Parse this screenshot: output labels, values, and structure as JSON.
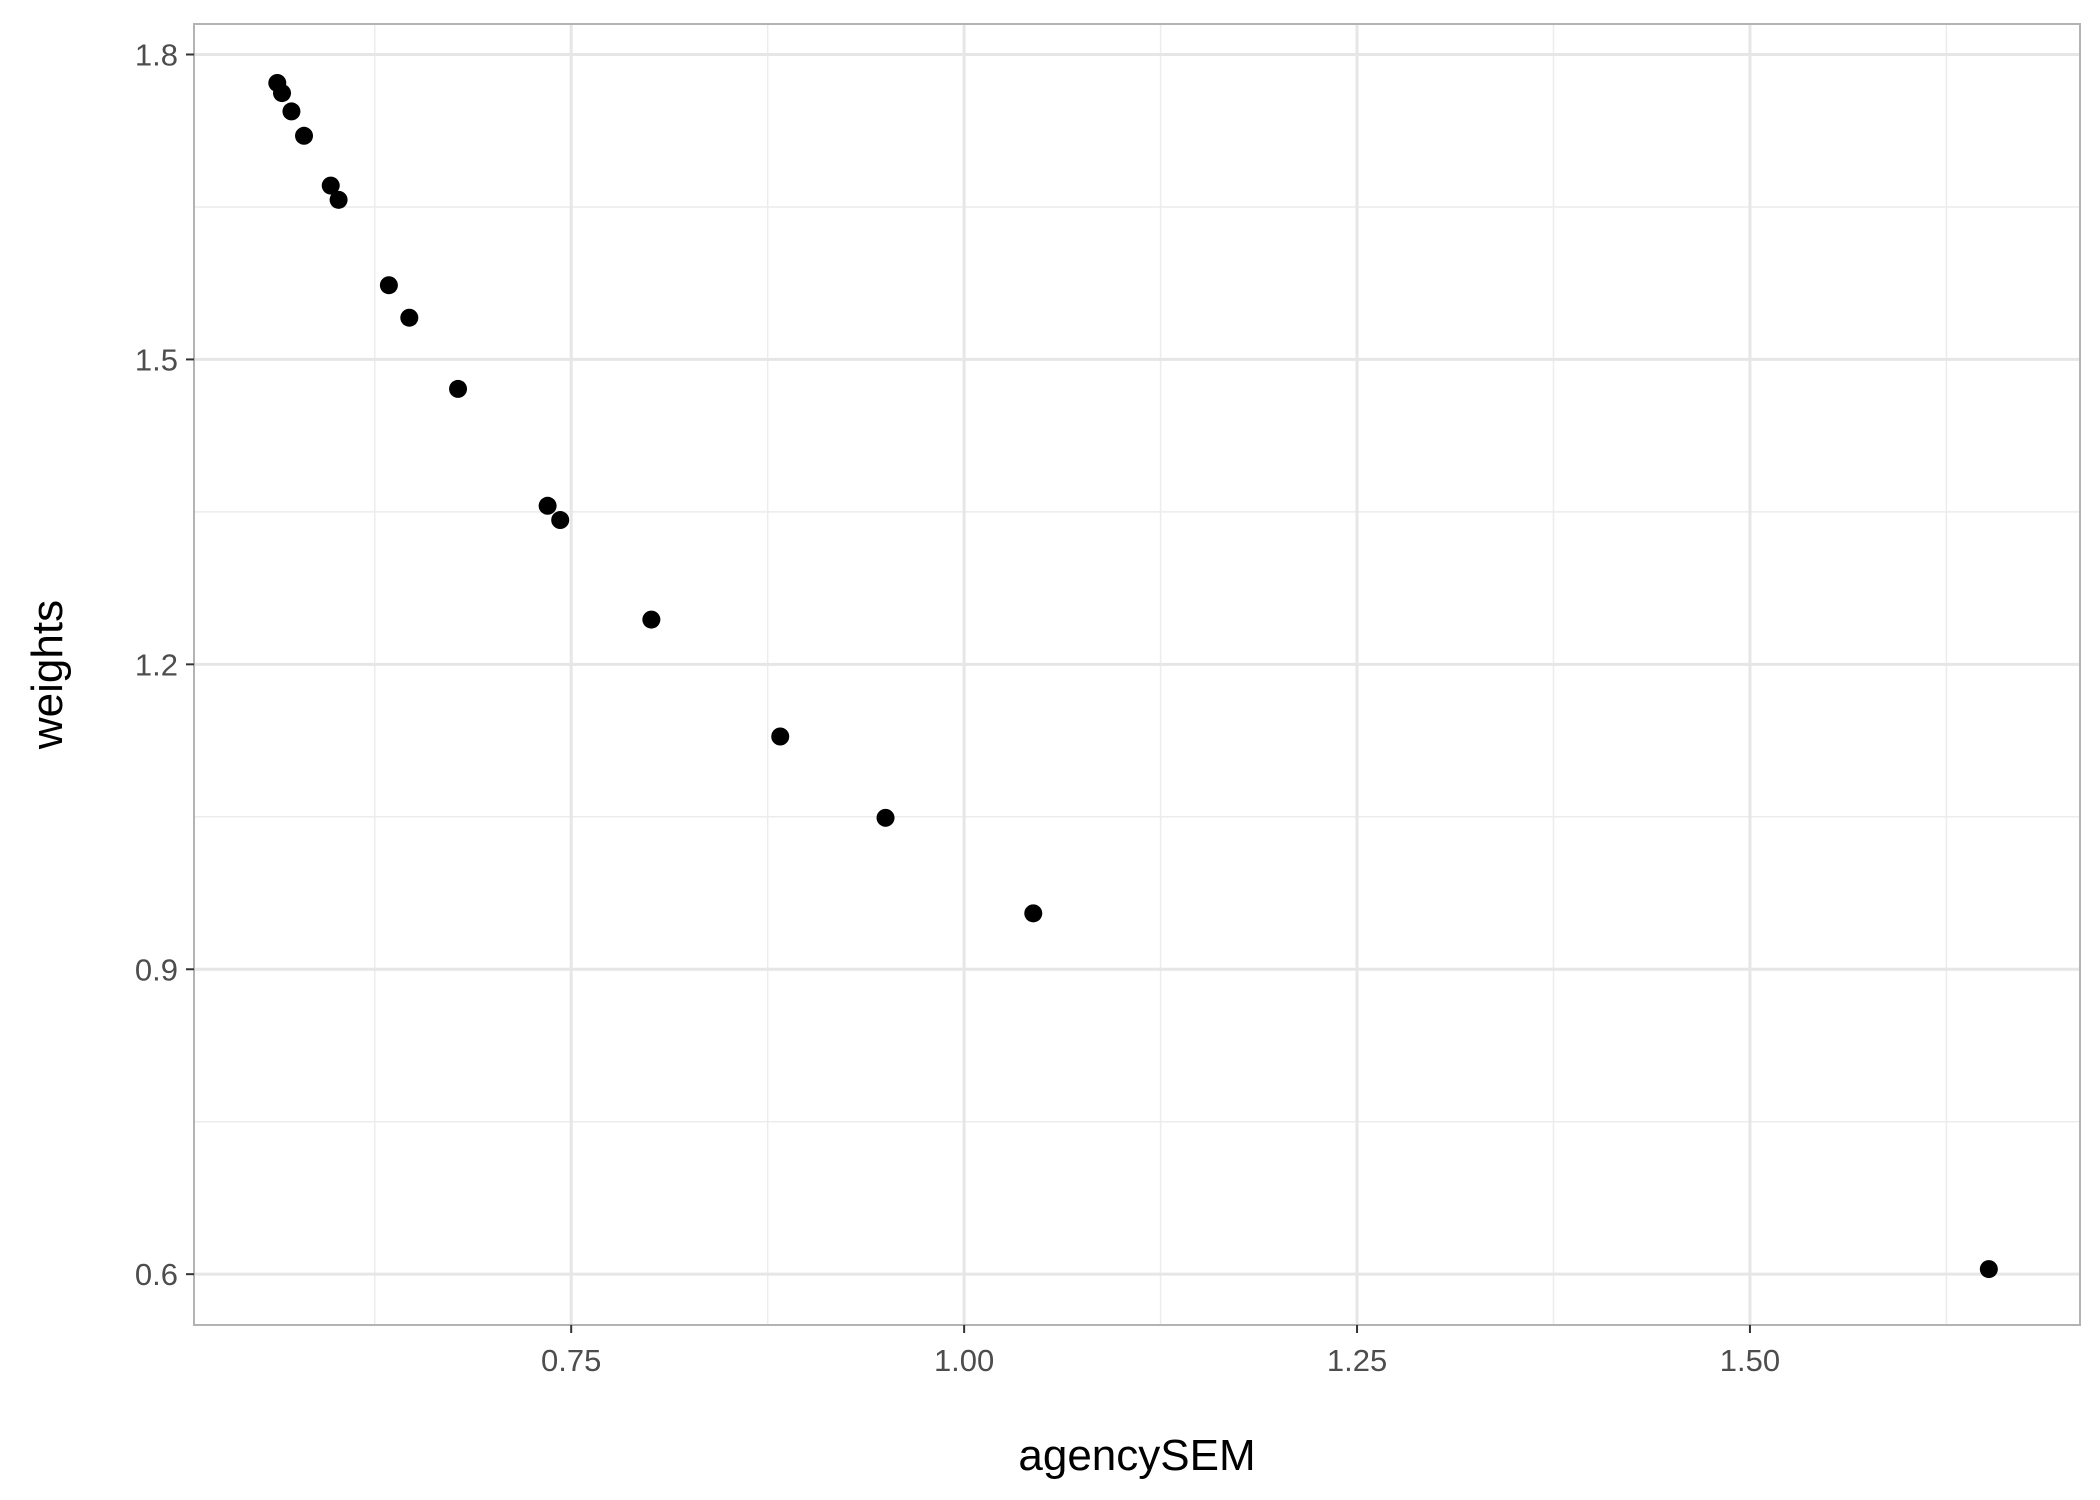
{
  "chart_data": {
    "type": "scatter",
    "title": "",
    "xlabel": "agencySEM",
    "ylabel": "weights",
    "xlim": [
      0.51,
      1.71
    ],
    "ylim": [
      0.55,
      1.83
    ],
    "x_ticks": [
      0.75,
      1.0,
      1.25,
      1.5
    ],
    "x_tick_labels": [
      "0.75",
      "1.00",
      "1.25",
      "1.50"
    ],
    "x_minor_ticks": [
      0.625,
      0.875,
      1.125,
      1.375,
      1.625
    ],
    "y_ticks": [
      0.6,
      0.9,
      1.2,
      1.5,
      1.8
    ],
    "y_tick_labels": [
      "0.6",
      "0.9",
      "1.2",
      "1.5",
      "1.8"
    ],
    "y_minor_ticks": [
      0.75,
      1.05,
      1.35,
      1.65
    ],
    "grid": true,
    "legend": "none",
    "point_color": "#000000",
    "points": [
      {
        "x": 0.563,
        "y": 1.772
      },
      {
        "x": 0.566,
        "y": 1.762
      },
      {
        "x": 0.572,
        "y": 1.744
      },
      {
        "x": 0.58,
        "y": 1.72
      },
      {
        "x": 0.597,
        "y": 1.671
      },
      {
        "x": 0.602,
        "y": 1.657
      },
      {
        "x": 0.634,
        "y": 1.573
      },
      {
        "x": 0.647,
        "y": 1.541
      },
      {
        "x": 0.678,
        "y": 1.471
      },
      {
        "x": 0.735,
        "y": 1.356
      },
      {
        "x": 0.743,
        "y": 1.342
      },
      {
        "x": 0.801,
        "y": 1.244
      },
      {
        "x": 0.883,
        "y": 1.129
      },
      {
        "x": 0.95,
        "y": 1.049
      },
      {
        "x": 1.044,
        "y": 0.955
      },
      {
        "x": 1.652,
        "y": 0.605
      }
    ]
  }
}
